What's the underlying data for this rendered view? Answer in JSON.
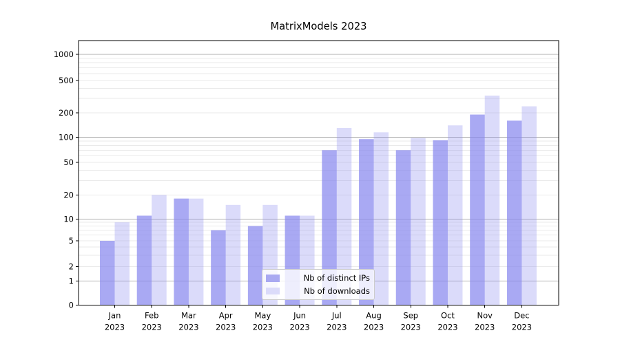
{
  "chart_data": {
    "type": "bar",
    "title": "MatrixModels 2023",
    "categories": [
      "Jan",
      "Feb",
      "Mar",
      "Apr",
      "May",
      "Jun",
      "Jul",
      "Aug",
      "Sep",
      "Oct",
      "Nov",
      "Dec"
    ],
    "year_label": "2023",
    "series": [
      {
        "name": "Nb of distinct IPs",
        "values": [
          5,
          11,
          18,
          7,
          8,
          11,
          70,
          95,
          70,
          92,
          190,
          160
        ],
        "color": "#8888ee",
        "alpha": 0.72,
        "rendered_color": "#a9a9f1"
      },
      {
        "name": "Nb of downloads",
        "values": [
          9,
          20,
          18,
          15,
          15,
          11,
          130,
          115,
          98,
          140,
          325,
          240
        ],
        "color": "#8888ee",
        "alpha": 0.3,
        "rendered_color": "#dbdbfa"
      }
    ],
    "yticks": [
      0,
      1,
      2,
      5,
      10,
      20,
      50,
      100,
      200,
      500,
      1000
    ],
    "yaxis_scale": "asinh",
    "ylim": [
      0,
      1450
    ],
    "grid": "horizontal",
    "legend_position": "lower-center",
    "xlabel": "",
    "ylabel": ""
  },
  "colors": {
    "grid_major": "#b0b0b0",
    "grid_minor": "#eaeaea",
    "axis": "#000000",
    "background": "#ffffff"
  }
}
